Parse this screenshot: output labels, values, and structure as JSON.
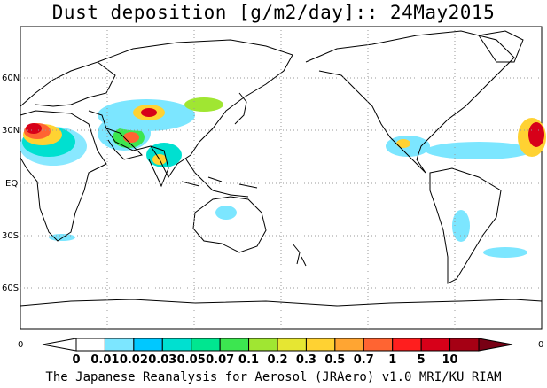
{
  "title": "Dust deposition [g/m2/day]:: 24May2015",
  "footer": "The Japanese Reanalysis for Aerosol (JRAero) v1.0 MRI/KU_RIAM",
  "latitude_labels": [
    "60N",
    "30N",
    "EQ",
    "30S",
    "60S"
  ],
  "longitude_edge_labels": [
    "0",
    "0"
  ],
  "colorbar": {
    "tick_labels": [
      "0",
      "0.01",
      "0.02",
      "0.03",
      "0.05",
      "0.07",
      "0.1",
      "0.2",
      "0.3",
      "0.5",
      "0.7",
      "1",
      "5",
      "10"
    ],
    "colors": [
      "#ffffff",
      "#ffffff",
      "#7ce6ff",
      "#00c8ff",
      "#00e0d0",
      "#00e690",
      "#3ce650",
      "#a0e632",
      "#e6e632",
      "#ffd232",
      "#ffa532",
      "#ff6432",
      "#ff1e1e",
      "#d70019",
      "#a50014",
      "#780014"
    ]
  },
  "map": {
    "projection": "cylindrical equidistant",
    "central_longitude": 180,
    "grid": "dotted",
    "field": "dust deposition"
  }
}
